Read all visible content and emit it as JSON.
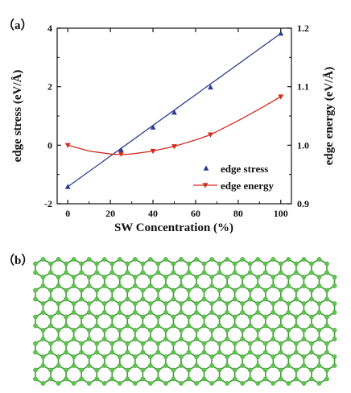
{
  "panel_a_label": "（a）",
  "panel_b_label": "（b）",
  "chart_data": {
    "type": "line",
    "xlabel": "SW Concentration (%)",
    "ylabel_left": "edge stress (eV/Å)",
    "ylabel_right": "edge energy (eV/Å)",
    "xlim": [
      -5,
      105
    ],
    "ylim_left": [
      -2,
      4
    ],
    "ylim_right": [
      0.9,
      1.2
    ],
    "x_ticks": [
      "0",
      "20",
      "40",
      "60",
      "80",
      "100"
    ],
    "y_left_ticks": [
      "-2",
      "0",
      "2",
      "4"
    ],
    "y_right_ticks": [
      "0.9",
      "1.0",
      "1.1",
      "1.2"
    ],
    "legend_position": "lower-right",
    "series": [
      {
        "name": "edge stress",
        "axis": "left",
        "marker": "triangle-up",
        "color": "#2b3c8f",
        "x": [
          0,
          25,
          40,
          50,
          67,
          100
        ],
        "y": [
          -1.42,
          -0.16,
          0.61,
          1.12,
          1.98,
          3.82
        ],
        "fit": {
          "type": "linear",
          "x": [
            0,
            100
          ],
          "y": [
            -1.42,
            3.82
          ]
        }
      },
      {
        "name": "edge energy",
        "axis": "right",
        "marker": "triangle-down",
        "color": "#d42a1e",
        "x": [
          0,
          25,
          40,
          50,
          67,
          100
        ],
        "y": [
          1.0,
          0.985,
          0.99,
          0.998,
          1.018,
          1.083
        ],
        "fit": {
          "type": "smooth",
          "x": [
            0,
            10,
            20,
            25,
            30,
            40,
            50,
            60,
            67,
            80,
            90,
            100
          ],
          "y": [
            1.0,
            0.99,
            0.985,
            0.984,
            0.985,
            0.99,
            0.998,
            1.009,
            1.018,
            1.042,
            1.062,
            1.083
          ]
        }
      }
    ]
  },
  "lattice": {
    "atom_color": "#5cc84a",
    "bond_color": "#3f9a35"
  }
}
